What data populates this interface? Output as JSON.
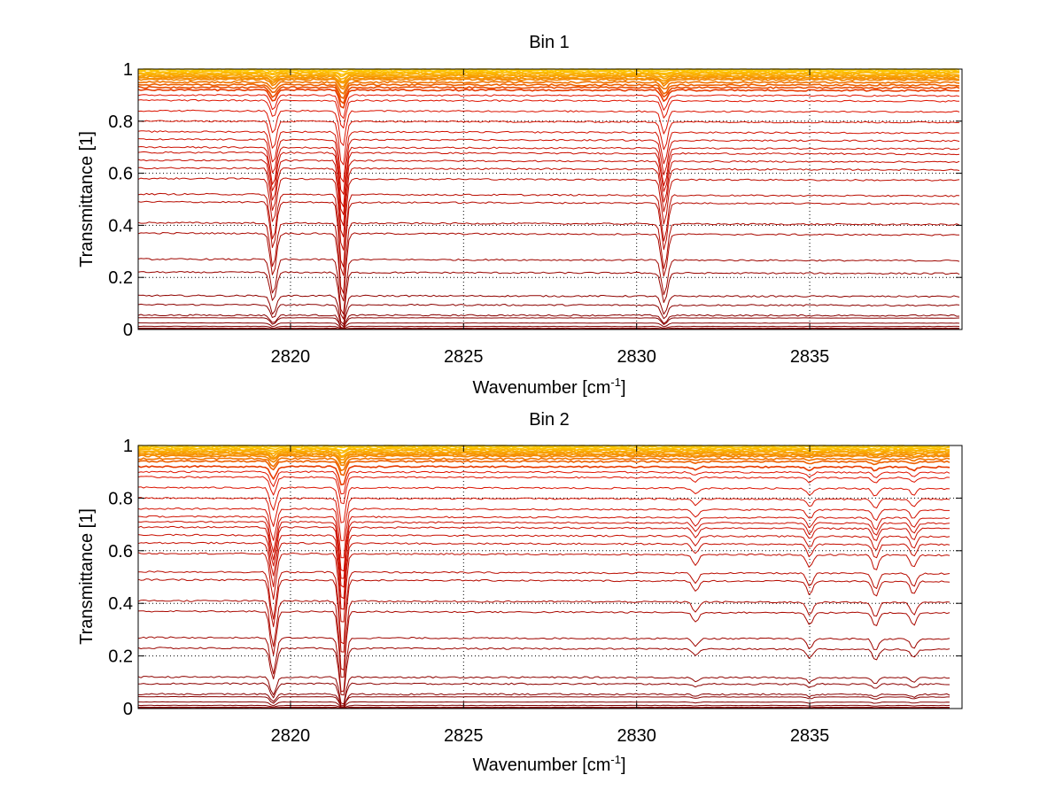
{
  "chart_data": [
    {
      "type": "line",
      "title": "Bin 1",
      "xlabel": "Wavenumber [cm",
      "xlabel_sup": "-1",
      "xlabel_end": "]",
      "ylabel": "Transmittance [1]",
      "xlim": [
        2815.6,
        2839.4
      ],
      "ylim": [
        0,
        1
      ],
      "xticks": [
        "2820",
        "2825",
        "2830",
        "2835"
      ],
      "yticks": [
        "0",
        "0.2",
        "0.4",
        "0.6",
        "0.8",
        "1"
      ],
      "grid": true,
      "lines": {
        "count_approx": 40,
        "baselines": [
          1.0,
          0.995,
          0.99,
          0.985,
          0.98,
          0.975,
          0.97,
          0.965,
          0.96,
          0.95,
          0.94,
          0.93,
          0.92,
          0.9,
          0.88,
          0.84,
          0.8,
          0.76,
          0.73,
          0.7,
          0.68,
          0.65,
          0.62,
          0.58,
          0.52,
          0.49,
          0.41,
          0.37,
          0.27,
          0.22,
          0.13,
          0.095,
          0.055,
          0.045,
          0.025,
          0.012,
          0.005,
          0.002
        ],
        "absorption_features": [
          {
            "x": 2819.5,
            "relative_depth": 0.18
          },
          {
            "x": 2821.5,
            "relative_depth": 0.3
          },
          {
            "x": 2830.8,
            "relative_depth": 0.18
          }
        ],
        "color_scale": "dark red (low transmittance) to orange/yellow (high transmittance)"
      }
    },
    {
      "type": "line",
      "title": "Bin 2",
      "xlabel": "Wavenumber [cm",
      "xlabel_sup": "-1",
      "xlabel_end": "]",
      "ylabel": "Transmittance [1]",
      "xlim": [
        2815.6,
        2839.4
      ],
      "ylim": [
        0,
        1
      ],
      "xticks": [
        "2820",
        "2825",
        "2830",
        "2835"
      ],
      "yticks": [
        "0",
        "0.2",
        "0.4",
        "0.6",
        "0.8",
        "1"
      ],
      "grid": true,
      "lines": {
        "count_approx": 40,
        "baselines": [
          1.0,
          0.995,
          0.99,
          0.985,
          0.98,
          0.975,
          0.97,
          0.965,
          0.96,
          0.95,
          0.94,
          0.92,
          0.9,
          0.88,
          0.84,
          0.8,
          0.76,
          0.73,
          0.71,
          0.69,
          0.66,
          0.63,
          0.59,
          0.52,
          0.49,
          0.41,
          0.37,
          0.27,
          0.23,
          0.12,
          0.095,
          0.055,
          0.045,
          0.025,
          0.012,
          0.005,
          0.002
        ],
        "absorption_features": [
          {
            "x": 2819.5,
            "relative_depth": 0.18
          },
          {
            "x": 2821.5,
            "relative_depth": 0.3
          },
          {
            "x": 2831.7,
            "relative_depth": 0.04
          },
          {
            "x": 2835.0,
            "relative_depth": 0.05
          },
          {
            "x": 2836.9,
            "relative_depth": 0.06
          },
          {
            "x": 2838.0,
            "relative_depth": 0.05
          }
        ],
        "color_scale": "dark red (low transmittance) to orange/yellow (high transmittance)"
      }
    }
  ]
}
